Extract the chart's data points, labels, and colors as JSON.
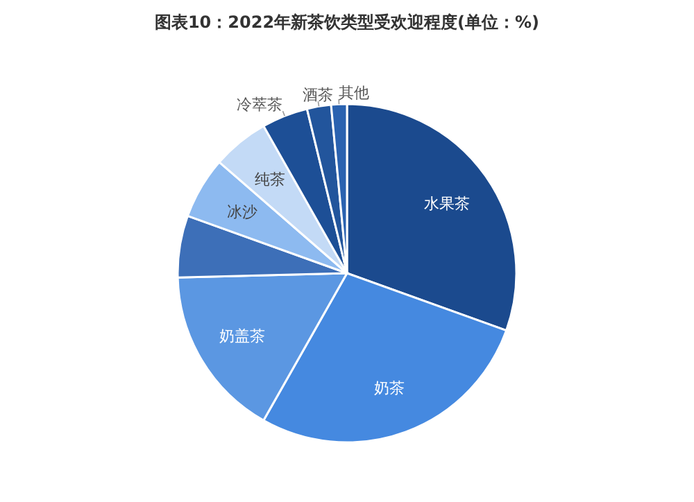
{
  "chart_data": {
    "type": "pie",
    "title": "图表10：2022年新茶饮类型受欢迎程度(单位：%)",
    "categories": [
      "水果茶",
      "奶茶",
      "奶盖茶",
      null,
      "冰沙",
      "纯茶",
      "冷萃茶",
      "酒茶",
      "其他"
    ],
    "values": [
      30.5,
      27.7,
      16.4,
      5.9,
      5.9,
      5.4,
      4.4,
      2.3,
      1.5
    ],
    "colors": [
      "#1b4a8e",
      "#4589e0",
      "#5b97e2",
      "#3d6fb8",
      "#8dbaf0",
      "#c3daf6",
      "#1d4f96",
      "#22559c",
      "#2a62b0"
    ]
  }
}
